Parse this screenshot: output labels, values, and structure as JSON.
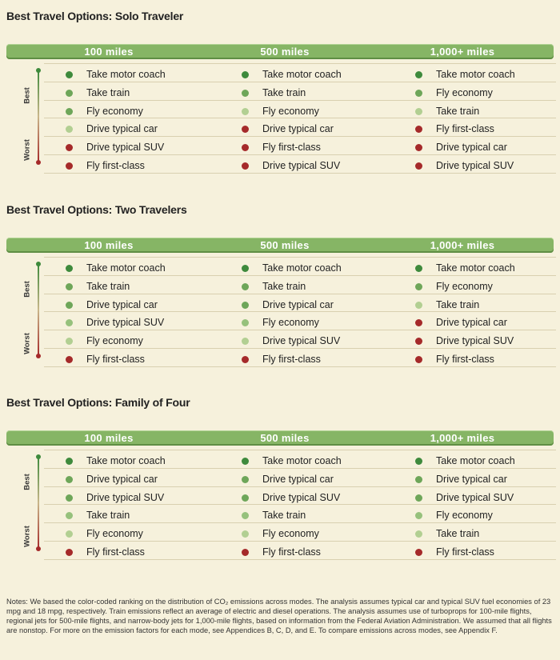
{
  "colors": {
    "header_bar": "#86b565",
    "best": "#3e8a3c",
    "good": "#6ea659",
    "mid": "#96c17c",
    "fair": "#b2cf92",
    "bad": "#a52a2a"
  },
  "axis": {
    "best": "Best",
    "worst": "Worst"
  },
  "columns": [
    "100 miles",
    "500 miles",
    "1,000+ miles"
  ],
  "sections": [
    {
      "title": "Best Travel Options: Solo Traveler",
      "cols": [
        [
          {
            "label": "Take motor coach",
            "level": "best"
          },
          {
            "label": "Take train",
            "level": "good"
          },
          {
            "label": "Fly economy",
            "level": "good"
          },
          {
            "label": "Drive typical car",
            "level": "fair"
          },
          {
            "label": "Drive typical SUV",
            "level": "bad"
          },
          {
            "label": "Fly first-class",
            "level": "bad"
          }
        ],
        [
          {
            "label": "Take motor coach",
            "level": "best"
          },
          {
            "label": "Take train",
            "level": "good"
          },
          {
            "label": "Fly economy",
            "level": "fair"
          },
          {
            "label": "Drive typical car",
            "level": "bad"
          },
          {
            "label": "Fly first-class",
            "level": "bad"
          },
          {
            "label": "Drive typical SUV",
            "level": "bad"
          }
        ],
        [
          {
            "label": "Take motor coach",
            "level": "best"
          },
          {
            "label": "Fly economy",
            "level": "good"
          },
          {
            "label": "Take train",
            "level": "fair"
          },
          {
            "label": "Fly first-class",
            "level": "bad"
          },
          {
            "label": "Drive typical car",
            "level": "bad"
          },
          {
            "label": "Drive typical SUV",
            "level": "bad"
          }
        ]
      ]
    },
    {
      "title": "Best Travel Options: Two Travelers",
      "cols": [
        [
          {
            "label": "Take motor coach",
            "level": "best"
          },
          {
            "label": "Take train",
            "level": "good"
          },
          {
            "label": "Drive typical car",
            "level": "good"
          },
          {
            "label": "Drive typical SUV",
            "level": "mid"
          },
          {
            "label": "Fly economy",
            "level": "fair"
          },
          {
            "label": "Fly first-class",
            "level": "bad"
          }
        ],
        [
          {
            "label": "Take motor coach",
            "level": "best"
          },
          {
            "label": "Take train",
            "level": "good"
          },
          {
            "label": "Drive typical car",
            "level": "good"
          },
          {
            "label": "Fly economy",
            "level": "mid"
          },
          {
            "label": "Drive typical SUV",
            "level": "fair"
          },
          {
            "label": "Fly first-class",
            "level": "bad"
          }
        ],
        [
          {
            "label": "Take motor coach",
            "level": "best"
          },
          {
            "label": "Fly economy",
            "level": "good"
          },
          {
            "label": "Take train",
            "level": "fair"
          },
          {
            "label": "Drive typical car",
            "level": "bad"
          },
          {
            "label": "Drive typical SUV",
            "level": "bad"
          },
          {
            "label": "Fly first-class",
            "level": "bad"
          }
        ]
      ]
    },
    {
      "title": "Best Travel Options: Family of Four",
      "cols": [
        [
          {
            "label": "Take motor coach",
            "level": "best"
          },
          {
            "label": "Drive typical car",
            "level": "good"
          },
          {
            "label": "Drive typical SUV",
            "level": "good"
          },
          {
            "label": "Take train",
            "level": "mid"
          },
          {
            "label": "Fly economy",
            "level": "fair"
          },
          {
            "label": "Fly first-class",
            "level": "bad"
          }
        ],
        [
          {
            "label": "Take motor coach",
            "level": "best"
          },
          {
            "label": "Drive typical car",
            "level": "good"
          },
          {
            "label": "Drive typical SUV",
            "level": "good"
          },
          {
            "label": "Take train",
            "level": "mid"
          },
          {
            "label": "Fly economy",
            "level": "fair"
          },
          {
            "label": "Fly first-class",
            "level": "bad"
          }
        ],
        [
          {
            "label": "Take motor coach",
            "level": "best"
          },
          {
            "label": "Drive typical car",
            "level": "good"
          },
          {
            "label": "Drive typical SUV",
            "level": "good"
          },
          {
            "label": "Fly economy",
            "level": "mid"
          },
          {
            "label": "Take train",
            "level": "fair"
          },
          {
            "label": "Fly first-class",
            "level": "bad"
          }
        ]
      ]
    }
  ],
  "notes": "Notes: We based the color-coded ranking on the distribution of CO₂ emissions across modes. The analysis assumes typical car and typical SUV fuel economies of 23 mpg and 18 mpg, respectively. Train emissions reflect an average of electric and diesel operations. The analysis assumes use of turboprops for 100-mile flights, regional jets for 500-mile flights, and narrow-body jets for 1,000-mile flights, based on information from the Federal Aviation Administration. We assumed that all flights are nonstop. For more on the emission factors for each mode, see Appendices B, C, D, and E. To compare emissions across modes, see Appendix F."
}
